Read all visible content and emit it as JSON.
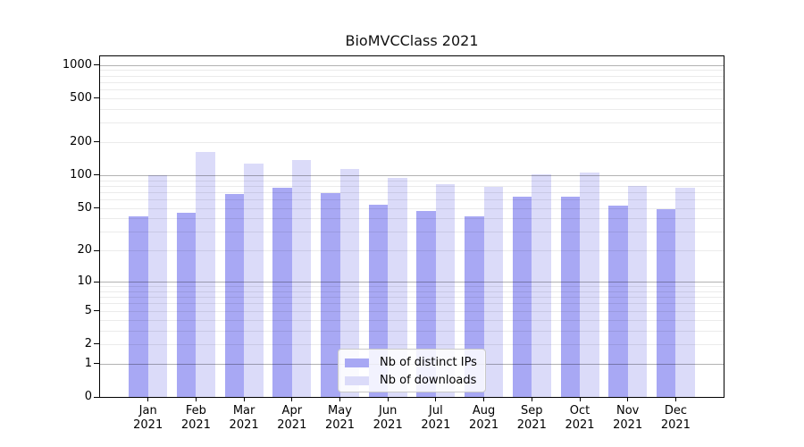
{
  "title": "BioMVCClass 2021",
  "chart_data": {
    "type": "bar",
    "title": "BioMVCClass 2021",
    "months": [
      "Jan",
      "Feb",
      "Mar",
      "Apr",
      "May",
      "Jun",
      "Jul",
      "Aug",
      "Sep",
      "Oct",
      "Nov",
      "Dec"
    ],
    "year": "2021",
    "categories": [
      "Jan 2021",
      "Feb 2021",
      "Mar 2021",
      "Apr 2021",
      "May 2021",
      "Jun 2021",
      "Jul 2021",
      "Aug 2021",
      "Sep 2021",
      "Oct 2021",
      "Nov 2021",
      "Dec 2021"
    ],
    "series": [
      {
        "name": "Nb of distinct IPs",
        "color": "#a8a8f4",
        "values": [
          42,
          45,
          67,
          77,
          69,
          54,
          47,
          42,
          63,
          63,
          53,
          49
        ]
      },
      {
        "name": "Nb of downloads",
        "color": "#dbdbf9",
        "values": [
          100,
          164,
          127,
          137,
          113,
          94,
          82,
          78,
          102,
          106,
          79,
          77
        ]
      }
    ],
    "xlabel": "",
    "ylabel": "",
    "y_axis": {
      "scale": "log-like: position proportional to log(1+value), 0 sits on the baseline",
      "ticks": [
        0,
        1,
        2,
        5,
        10,
        20,
        50,
        100,
        200,
        500,
        1000
      ],
      "major_gridlines": [
        1,
        10,
        100,
        1000
      ],
      "minor_gridline_rule": "multiples 2-9 of each decade (2-9, 20-90, 200-900)",
      "range": [
        0,
        1200
      ]
    },
    "grid": "on",
    "legend_position": "bottom center, inside plot"
  }
}
